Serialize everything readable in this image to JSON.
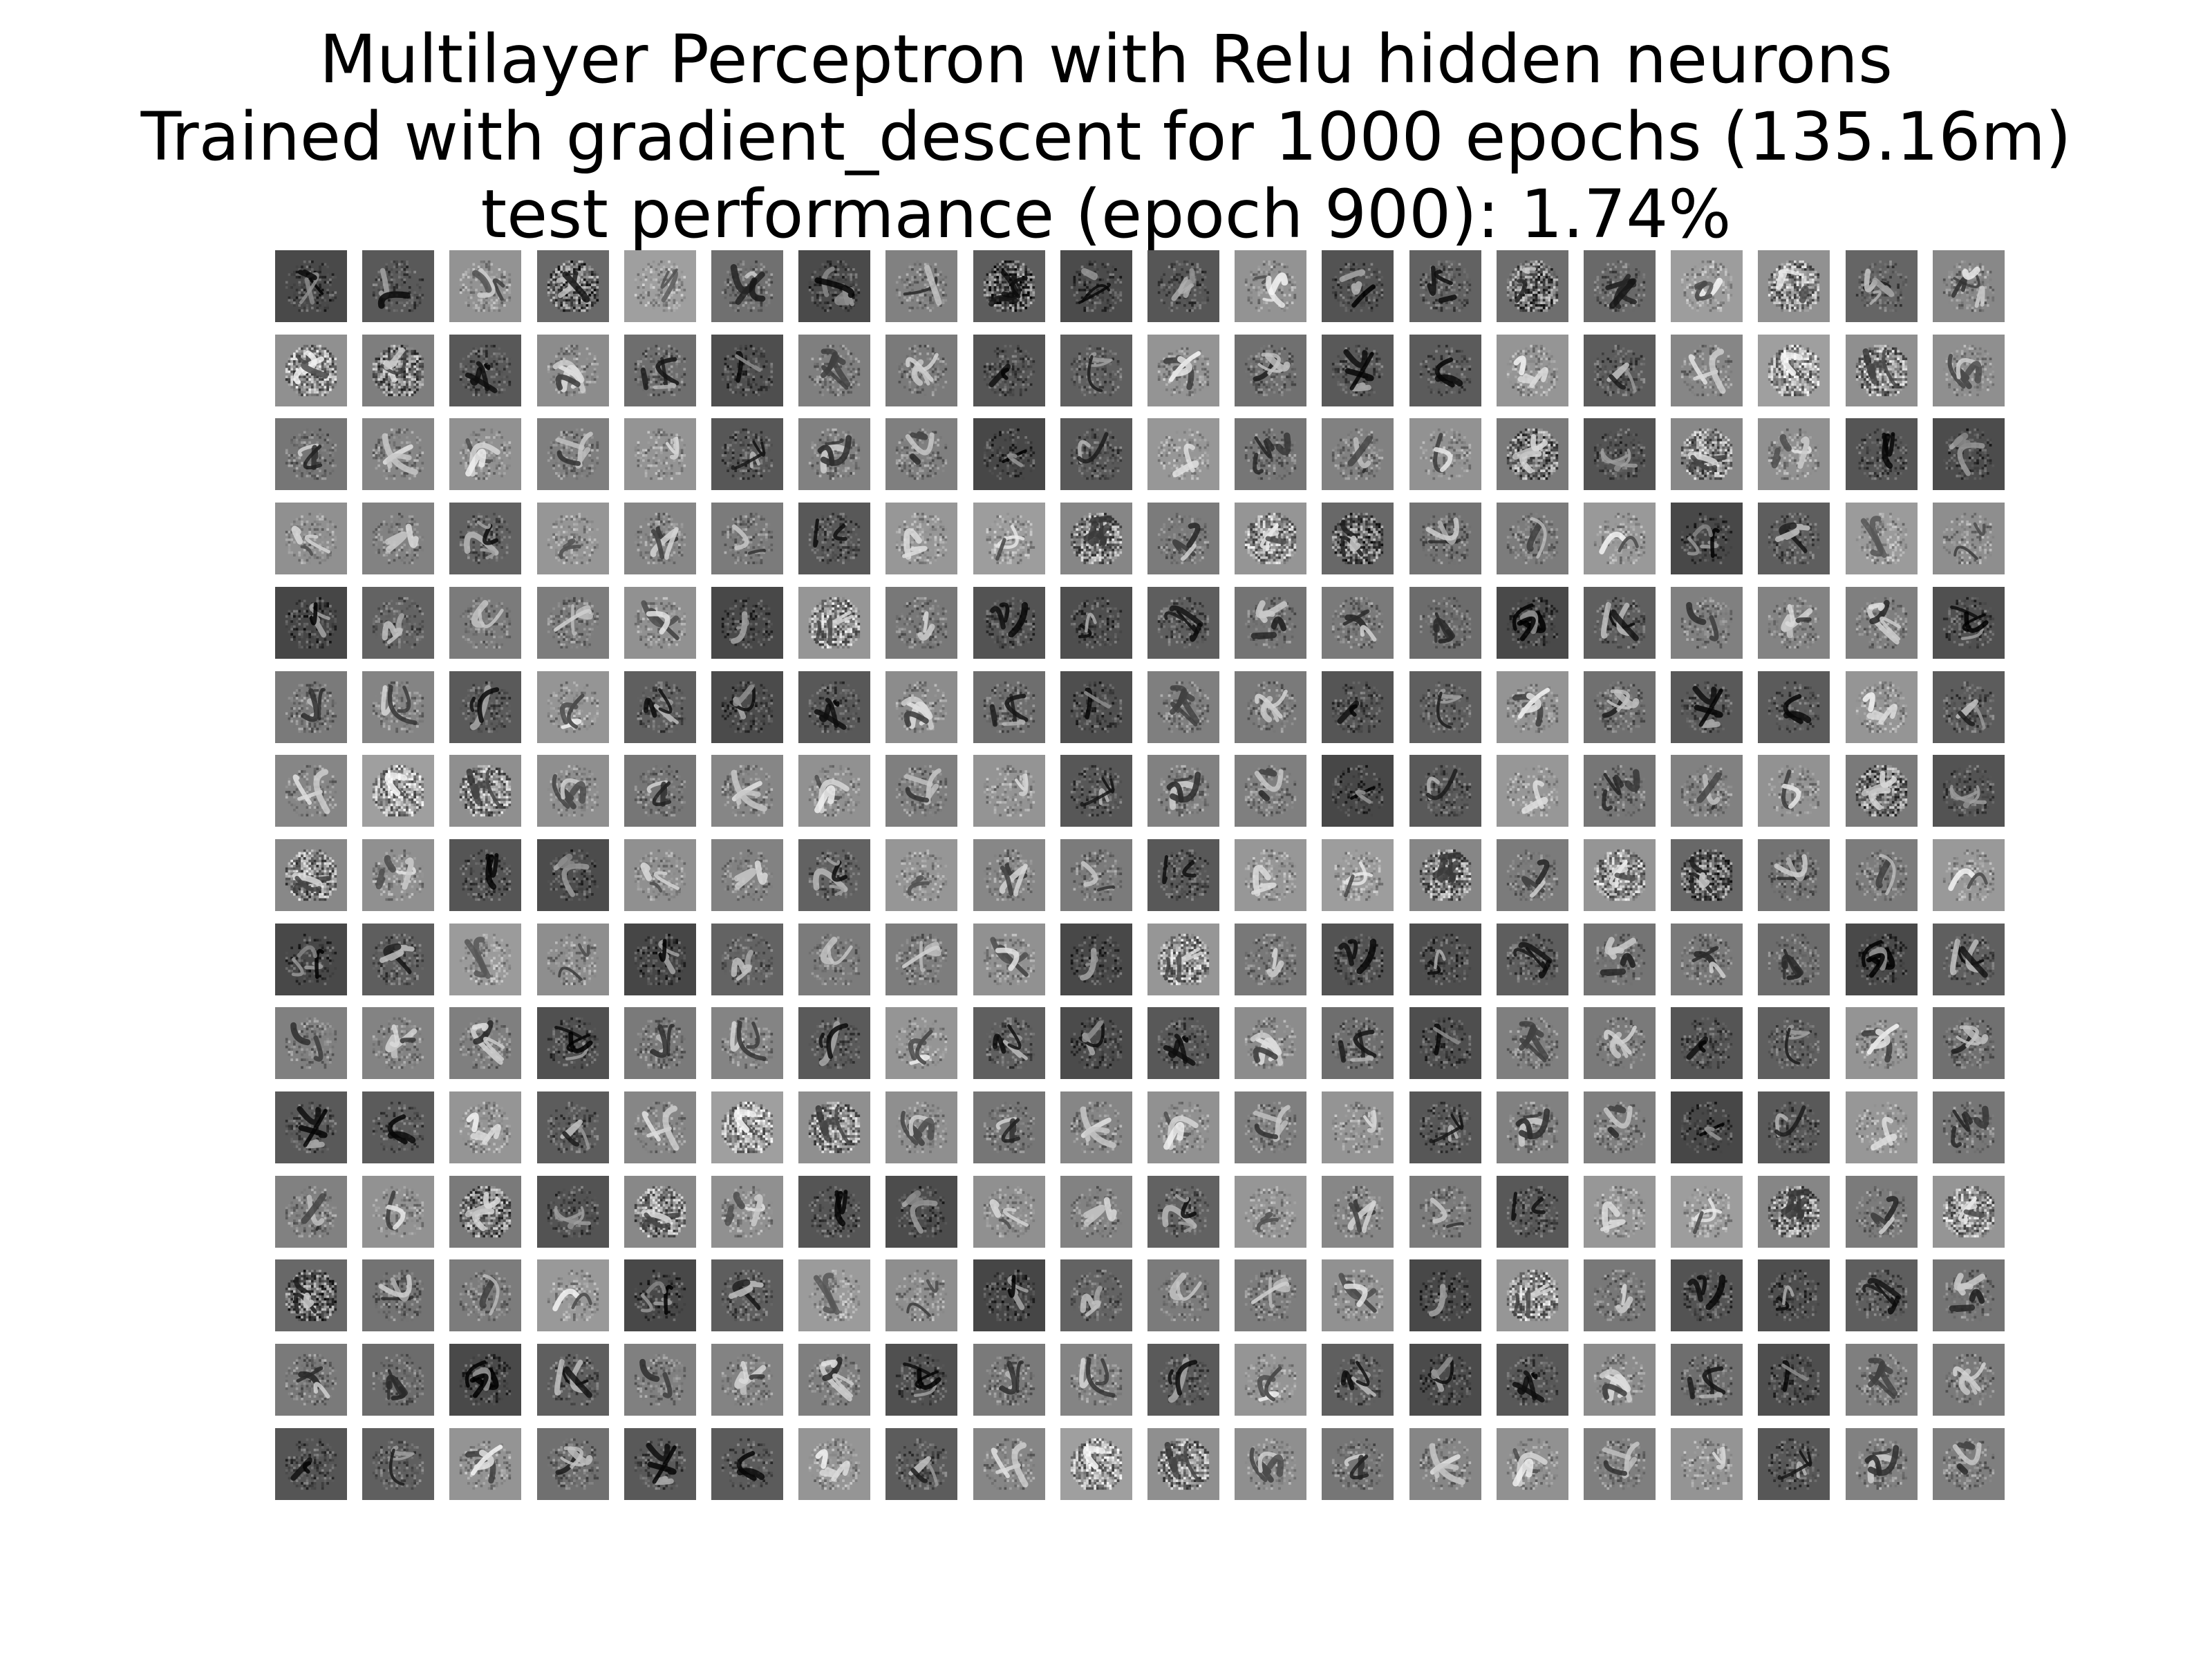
{
  "figure": {
    "title_lines": [
      "Multilayer Perceptron with Relu hidden neurons",
      "Trained with gradient_descent for 1000 epochs (135.16m)",
      "test performance (epoch 900): 1.74%"
    ],
    "grid": {
      "rows": 15,
      "columns": 20,
      "tile_count": 300,
      "colormap": "grayscale"
    }
  }
}
